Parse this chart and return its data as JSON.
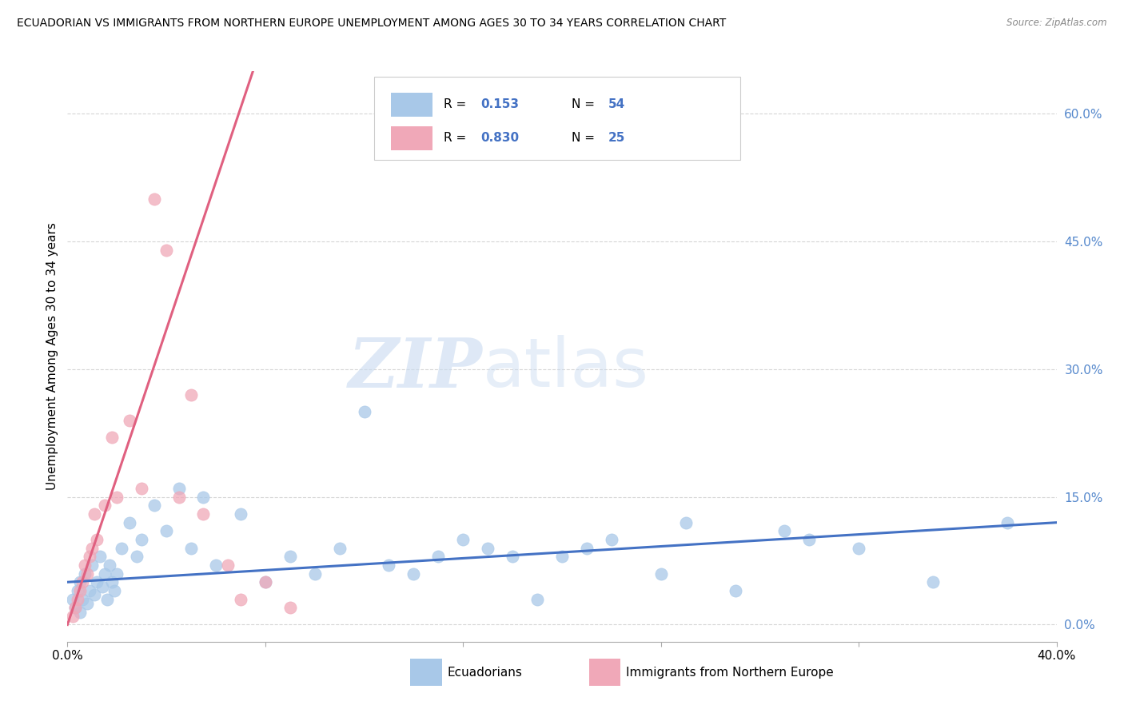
{
  "title": "ECUADORIAN VS IMMIGRANTS FROM NORTHERN EUROPE UNEMPLOYMENT AMONG AGES 30 TO 34 YEARS CORRELATION CHART",
  "source": "Source: ZipAtlas.com",
  "ylabel": "Unemployment Among Ages 30 to 34 years",
  "ytick_vals": [
    0.0,
    15.0,
    30.0,
    45.0,
    60.0
  ],
  "xlim": [
    0.0,
    40.0
  ],
  "ylim": [
    -2.0,
    65.0
  ],
  "legend_R1": "0.153",
  "legend_N1": "54",
  "legend_R2": "0.830",
  "legend_N2": "25",
  "ecuadorians_x": [
    0.2,
    0.3,
    0.4,
    0.5,
    0.5,
    0.6,
    0.7,
    0.8,
    0.9,
    1.0,
    1.1,
    1.2,
    1.3,
    1.4,
    1.5,
    1.6,
    1.7,
    1.8,
    1.9,
    2.0,
    2.2,
    2.5,
    2.8,
    3.0,
    3.5,
    4.0,
    4.5,
    5.0,
    5.5,
    6.0,
    7.0,
    8.0,
    9.0,
    10.0,
    11.0,
    12.0,
    13.0,
    14.0,
    15.0,
    16.0,
    17.0,
    18.0,
    19.0,
    20.0,
    21.0,
    22.0,
    24.0,
    25.0,
    27.0,
    29.0,
    30.0,
    32.0,
    35.0,
    38.0
  ],
  "ecuadorians_y": [
    3.0,
    2.0,
    4.0,
    1.5,
    5.0,
    3.0,
    6.0,
    2.5,
    4.0,
    7.0,
    3.5,
    5.0,
    8.0,
    4.5,
    6.0,
    3.0,
    7.0,
    5.0,
    4.0,
    6.0,
    9.0,
    12.0,
    8.0,
    10.0,
    14.0,
    11.0,
    16.0,
    9.0,
    15.0,
    7.0,
    13.0,
    5.0,
    8.0,
    6.0,
    9.0,
    25.0,
    7.0,
    6.0,
    8.0,
    10.0,
    9.0,
    8.0,
    3.0,
    8.0,
    9.0,
    10.0,
    6.0,
    12.0,
    4.0,
    11.0,
    10.0,
    9.0,
    5.0,
    12.0
  ],
  "northern_europe_x": [
    0.2,
    0.3,
    0.4,
    0.5,
    0.6,
    0.7,
    0.8,
    0.9,
    1.0,
    1.1,
    1.2,
    1.5,
    1.8,
    2.0,
    2.5,
    3.0,
    3.5,
    4.0,
    4.5,
    5.0,
    5.5,
    6.5,
    7.0,
    8.0,
    9.0
  ],
  "northern_europe_y": [
    1.0,
    2.0,
    3.0,
    4.0,
    5.0,
    7.0,
    6.0,
    8.0,
    9.0,
    13.0,
    10.0,
    14.0,
    22.0,
    15.0,
    24.0,
    16.0,
    50.0,
    44.0,
    15.0,
    27.0,
    13.0,
    7.0,
    3.0,
    5.0,
    2.0
  ],
  "watermark_zip": "ZIP",
  "watermark_atlas": "atlas",
  "blue_line_color": "#4472c4",
  "pink_line_color": "#e06080",
  "dot_blue": "#a8c8e8",
  "dot_pink": "#f0a8b8",
  "background_color": "#ffffff",
  "grid_color": "#cccccc",
  "ytick_color": "#5588cc"
}
